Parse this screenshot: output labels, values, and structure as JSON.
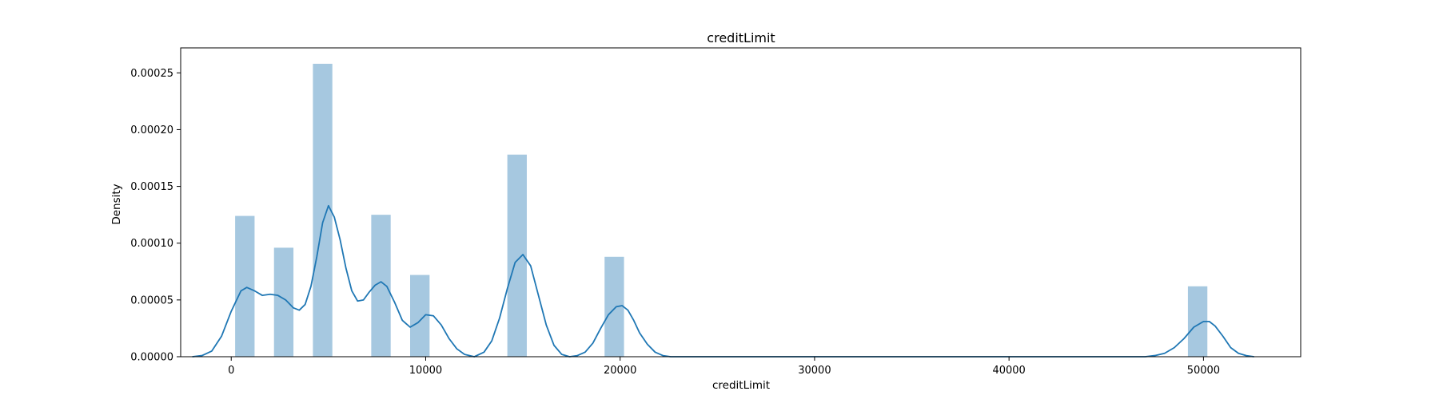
{
  "chart_data": {
    "type": "bar",
    "title": "creditLimit",
    "xlabel": "creditLimit",
    "ylabel": "Density",
    "xlim": [
      -2600,
      55000
    ],
    "ylim": [
      0,
      0.000272
    ],
    "xticks": [
      0,
      10000,
      20000,
      30000,
      40000,
      50000
    ],
    "xtick_labels": [
      "0",
      "10000",
      "20000",
      "30000",
      "40000",
      "50000"
    ],
    "yticks": [
      0,
      5e-05,
      0.0001,
      0.00015,
      0.0002,
      0.00025
    ],
    "ytick_labels": [
      "0.00000",
      "0.00005",
      "0.00010",
      "0.00015",
      "0.00020",
      "0.00025"
    ],
    "grid": false,
    "bar_color": "#a6c8e0",
    "line_color": "#1f77b4",
    "histogram": {
      "bin_width": 1000,
      "bins": [
        {
          "x0": 200,
          "x1": 1200,
          "density": 0.000124
        },
        {
          "x0": 2200,
          "x1": 3200,
          "density": 9.6e-05
        },
        {
          "x0": 4200,
          "x1": 5200,
          "density": 0.000258
        },
        {
          "x0": 7200,
          "x1": 8200,
          "density": 0.000125
        },
        {
          "x0": 9200,
          "x1": 10200,
          "density": 7.2e-05
        },
        {
          "x0": 14200,
          "x1": 15200,
          "density": 0.000178
        },
        {
          "x0": 19200,
          "x1": 20200,
          "density": 8.8e-05
        },
        {
          "x0": 49200,
          "x1": 50200,
          "density": 6.2e-05
        }
      ]
    },
    "kde": {
      "x": [
        -2000,
        -1500,
        -1000,
        -500,
        0,
        500,
        800,
        1200,
        1600,
        2000,
        2400,
        2800,
        3200,
        3500,
        3800,
        4100,
        4400,
        4700,
        5000,
        5300,
        5600,
        5900,
        6200,
        6500,
        6800,
        7100,
        7400,
        7700,
        8000,
        8400,
        8800,
        9200,
        9600,
        10000,
        10400,
        10800,
        11200,
        11600,
        12000,
        12500,
        13000,
        13400,
        13800,
        14200,
        14600,
        15000,
        15400,
        15800,
        16200,
        16600,
        17000,
        17400,
        17800,
        18200,
        18600,
        19000,
        19400,
        19800,
        20100,
        20400,
        20700,
        21000,
        21400,
        21800,
        22200,
        22600,
        23000,
        24000,
        30000,
        40000,
        46000,
        47000,
        47500,
        48000,
        48500,
        49000,
        49500,
        50000,
        50300,
        50600,
        51000,
        51400,
        51800,
        52200,
        52600
      ],
      "y": [
        0.0,
        1e-06,
        5e-06,
        1.8e-05,
        4e-05,
        5.8e-05,
        6.1e-05,
        5.8e-05,
        5.4e-05,
        5.5e-05,
        5.4e-05,
        5e-05,
        4.3e-05,
        4.1e-05,
        4.6e-05,
        6.2e-05,
        8.8e-05,
        0.000118,
        0.000133,
        0.000123,
        0.000103,
        7.8e-05,
        5.8e-05,
        4.9e-05,
        5e-05,
        5.7e-05,
        6.3e-05,
        6.6e-05,
        6.2e-05,
        4.8e-05,
        3.2e-05,
        2.6e-05,
        3e-05,
        3.7e-05,
        3.6e-05,
        2.8e-05,
        1.6e-05,
        7e-06,
        2e-06,
        0.0,
        4e-06,
        1.4e-05,
        3.4e-05,
        6e-05,
        8.3e-05,
        9e-05,
        8e-05,
        5.4e-05,
        2.8e-05,
        1e-05,
        2e-06,
        0.0,
        1e-06,
        4e-06,
        1.2e-05,
        2.5e-05,
        3.7e-05,
        4.4e-05,
        4.5e-05,
        4.1e-05,
        3.2e-05,
        2.1e-05,
        1.1e-05,
        4e-06,
        1e-06,
        0.0,
        0.0,
        0.0,
        0.0,
        0.0,
        0.0,
        0.0,
        1e-06,
        3e-06,
        8e-06,
        1.6e-05,
        2.6e-05,
        3.1e-05,
        3.1e-05,
        2.7e-05,
        1.8e-05,
        8e-06,
        3e-06,
        1e-06,
        0.0
      ]
    }
  }
}
